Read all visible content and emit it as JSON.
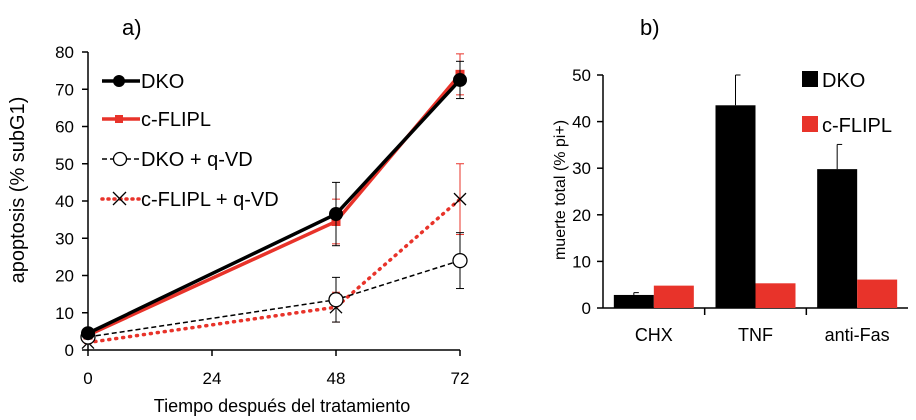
{
  "chart_data": [
    {
      "panel_label": "a)",
      "type": "line",
      "xlabel": "Tiempo después del tratamiento",
      "ylabel": "apoptosis (% subG1)",
      "xlim": [
        0,
        72
      ],
      "ylim": [
        0,
        80
      ],
      "xticks": [
        0,
        24,
        48,
        72
      ],
      "yticks": [
        0,
        10,
        20,
        30,
        40,
        50,
        60,
        70,
        80
      ],
      "x": [
        0,
        48,
        72
      ],
      "legend_position": "top-left",
      "series": [
        {
          "name": "DKO",
          "values": [
            4.5,
            36.5,
            72.5
          ],
          "err": [
            0.5,
            8.5,
            5.0
          ],
          "color": "#000000",
          "marker": "filled-circle",
          "line": "solid-thick"
        },
        {
          "name": "c-FLIPL",
          "values": [
            4.0,
            34.5,
            74.0
          ],
          "err": [
            0.5,
            6.0,
            5.5
          ],
          "color": "#e8332a",
          "marker": "square",
          "line": "solid-thick"
        },
        {
          "name": "DKO + q-VD",
          "values": [
            3.5,
            13.5,
            24.0
          ],
          "err": [
            0.5,
            6.0,
            7.5
          ],
          "color": "#000000",
          "marker": "open-circle",
          "line": "dashed"
        },
        {
          "name": "c-FLIPL + q-VD",
          "values": [
            2.0,
            11.5,
            40.5
          ],
          "err": [
            0.3,
            4.0,
            9.5
          ],
          "color": "#e8332a",
          "marker": "cross",
          "line": "dotted"
        }
      ]
    },
    {
      "panel_label": "b)",
      "type": "bar",
      "ylabel": "muerte total (% pi+)",
      "categories": [
        "CHX",
        "TNF",
        "anti-Fas"
      ],
      "ylim": [
        0,
        50
      ],
      "yticks": [
        0,
        10,
        20,
        30,
        40,
        50
      ],
      "legend_position": "top-right",
      "series": [
        {
          "name": "DKO",
          "values": [
            2.8,
            43.5,
            29.8
          ],
          "err": [
            0.5,
            6.5,
            5.3
          ],
          "color": "#000000"
        },
        {
          "name": "c-FLIPL",
          "values": [
            4.8,
            5.3,
            6.1
          ],
          "err": [
            0,
            0,
            0
          ],
          "color": "#e8332a"
        }
      ]
    }
  ]
}
